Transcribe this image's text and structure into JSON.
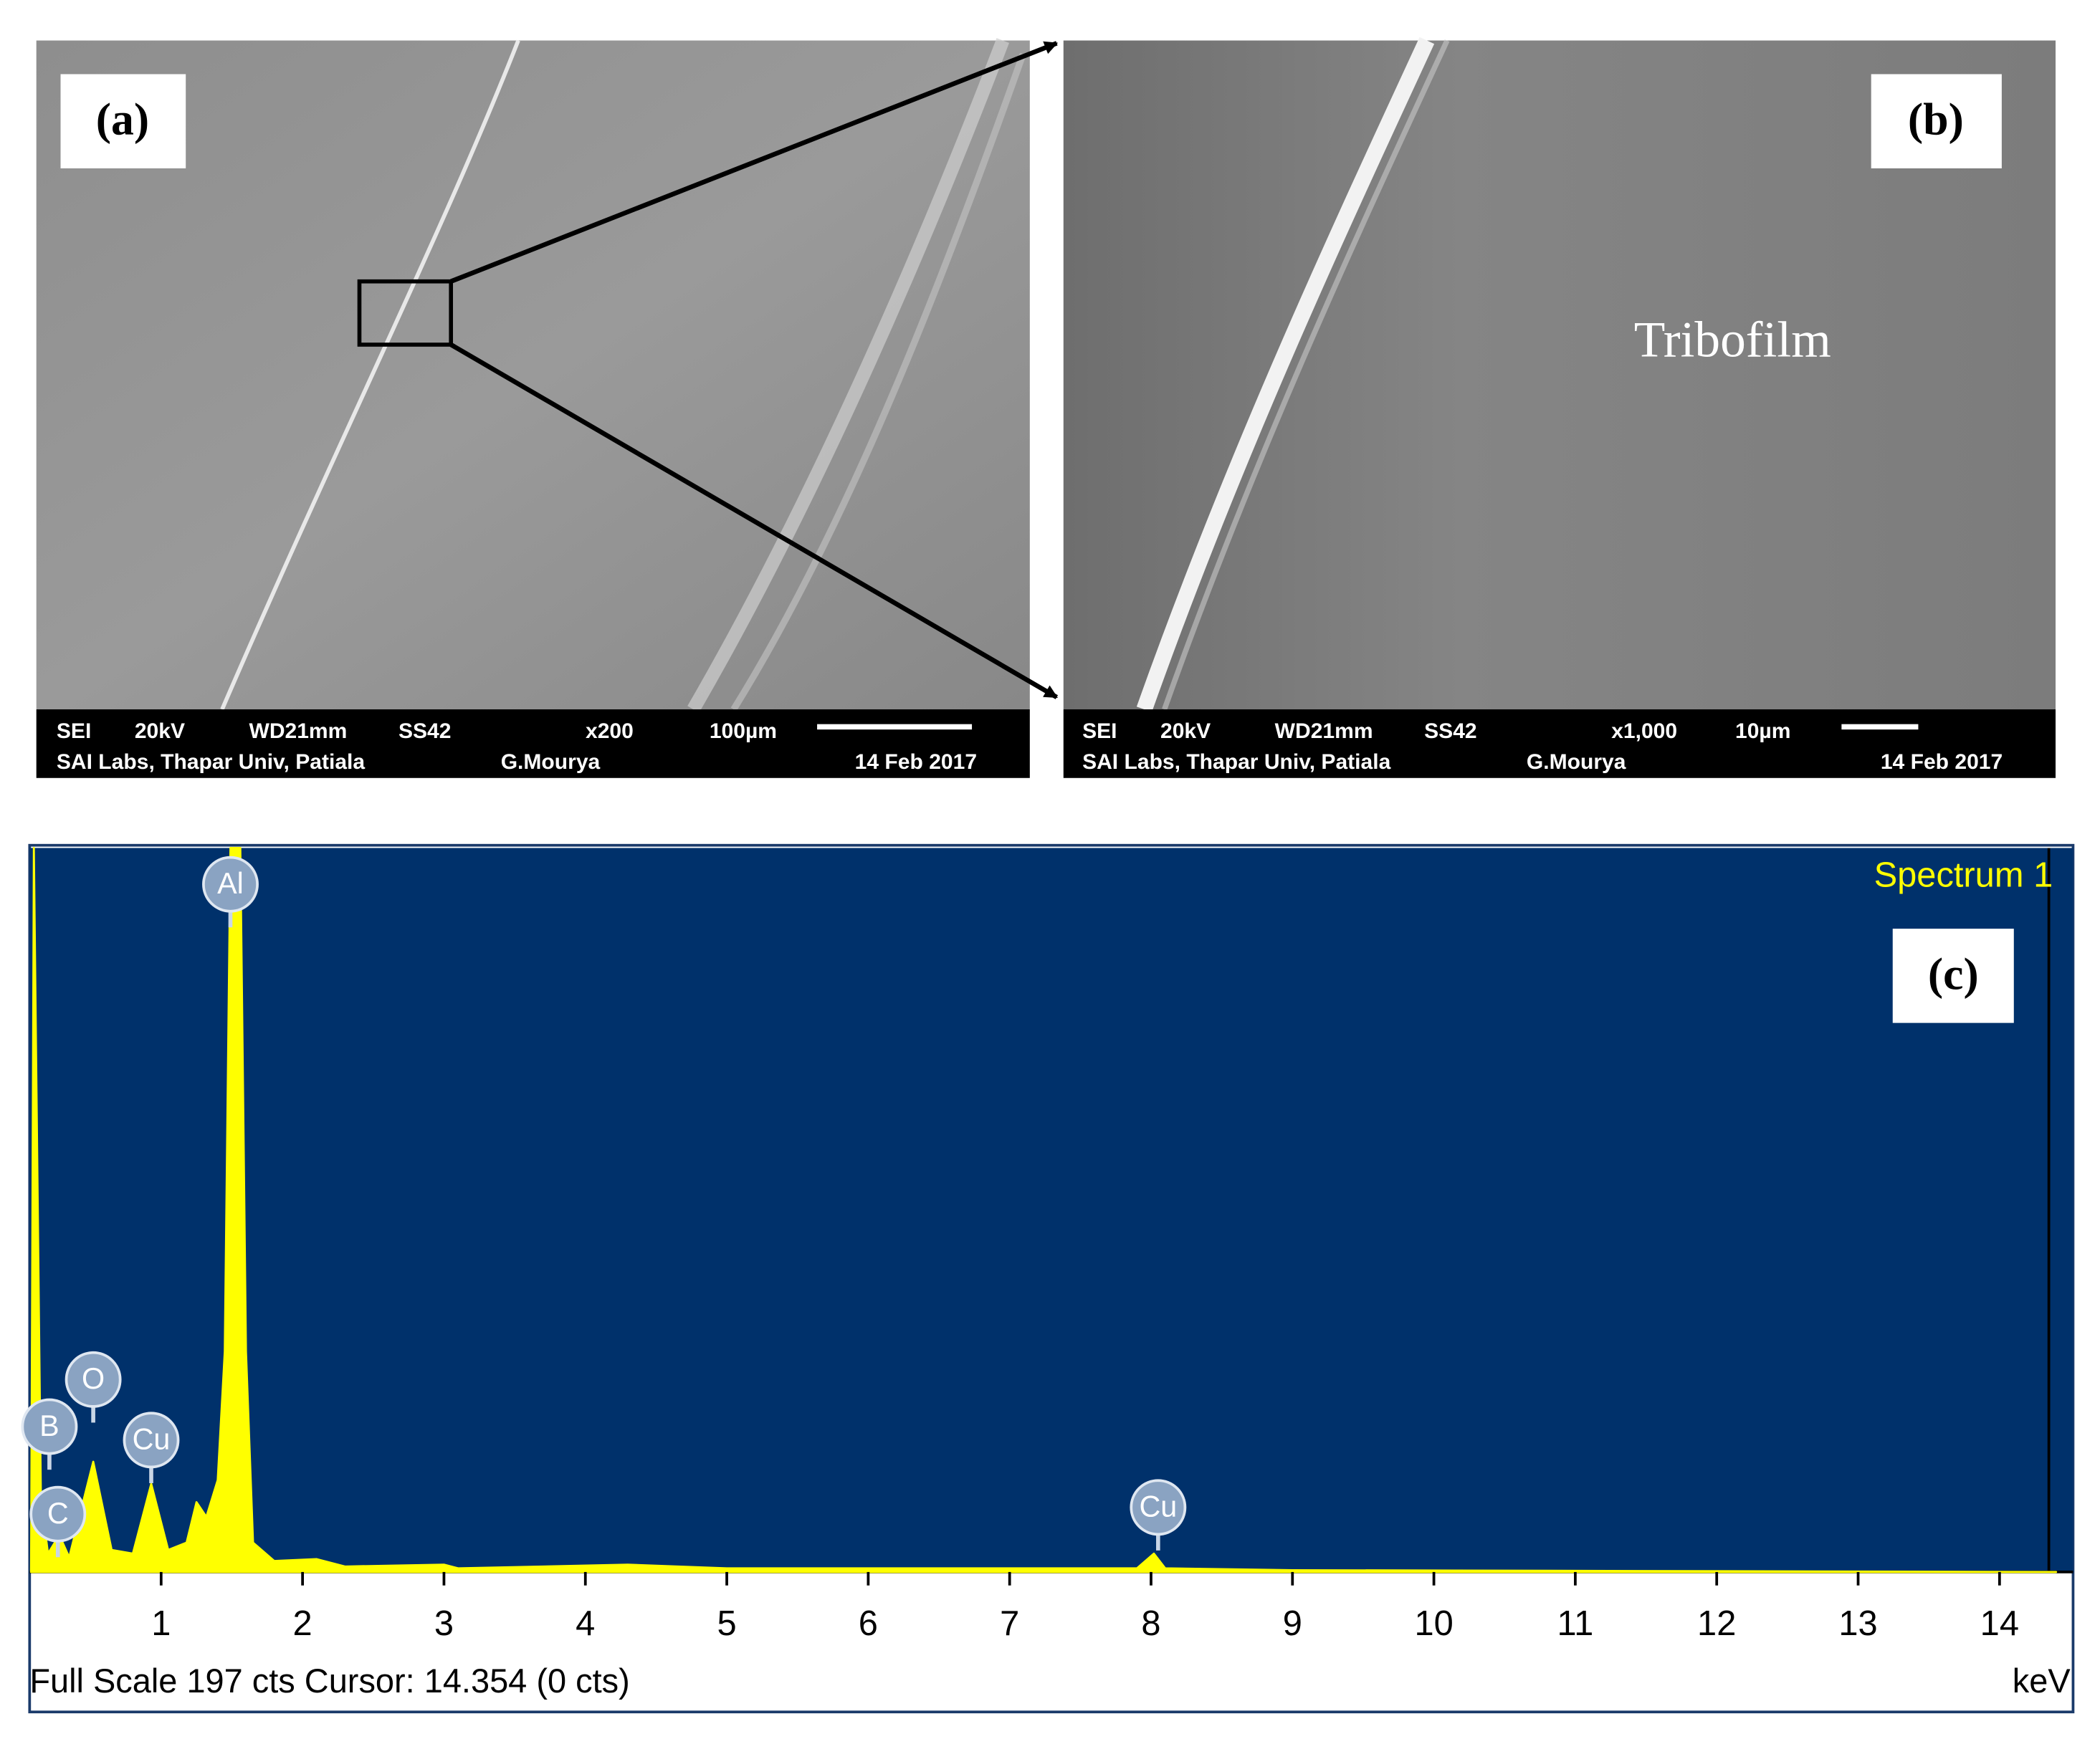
{
  "panels": [
    {
      "label": "(a)",
      "info": {
        "row1": [
          "SEI",
          "20kV",
          "WD21mm",
          "SS42",
          "x200",
          "100µm"
        ],
        "row2": [
          "SAI Labs, Thapar Univ, Patiala",
          "G.Mourya",
          "14 Feb 2017"
        ]
      }
    },
    {
      "label": "(b)",
      "annotation": "Tribofilm",
      "info": {
        "row1": [
          "SEI",
          "20kV",
          "WD21mm",
          "SS42",
          "x1,000",
          "10µm"
        ],
        "row2": [
          "SAI Labs, Thapar Univ, Patiala",
          "G.Mourya",
          "14 Feb 2017"
        ]
      }
    }
  ],
  "chart_data": {
    "type": "area",
    "title": "Spectrum 1",
    "panel_label": "(c)",
    "x": [
      0.08,
      0.1,
      0.15,
      0.2,
      0.28,
      0.35,
      0.52,
      0.65,
      0.8,
      0.93,
      1.05,
      1.18,
      1.25,
      1.32,
      1.4,
      1.45,
      1.49,
      1.56,
      1.6,
      1.65,
      1.8,
      2.1,
      2.3,
      3.0,
      3.1,
      4.3,
      5.0,
      6.0,
      7.9,
      8.02,
      8.1,
      9.0,
      14.4
    ],
    "values": [
      0,
      197,
      20,
      5,
      10,
      4,
      30,
      6,
      5,
      24,
      6,
      8,
      19,
      15,
      25,
      60,
      197,
      197,
      60,
      8,
      3,
      3.5,
      1.5,
      2,
      1,
      2,
      1,
      1,
      1,
      5,
      1,
      0.5,
      0
    ],
    "color": "#ffff00",
    "background": "#00316b",
    "xlim": [
      0.07,
      14.52
    ],
    "ylim": [
      0,
      197
    ],
    "xticks": [
      1,
      2,
      3,
      4,
      5,
      6,
      7,
      8,
      9,
      10,
      11,
      12,
      13,
      14
    ],
    "x_label": "keV",
    "footer": "Full Scale 197 cts Cursor: 14.354  (0 cts)",
    "peaks": [
      {
        "label": "Al",
        "x": 1.49
      },
      {
        "label": "O",
        "x": 0.52
      },
      {
        "label": "B",
        "x": 0.21
      },
      {
        "label": "C",
        "x": 0.27
      },
      {
        "label": "Cu",
        "x": 0.93
      },
      {
        "label": "Cu",
        "x": 8.05
      }
    ]
  }
}
